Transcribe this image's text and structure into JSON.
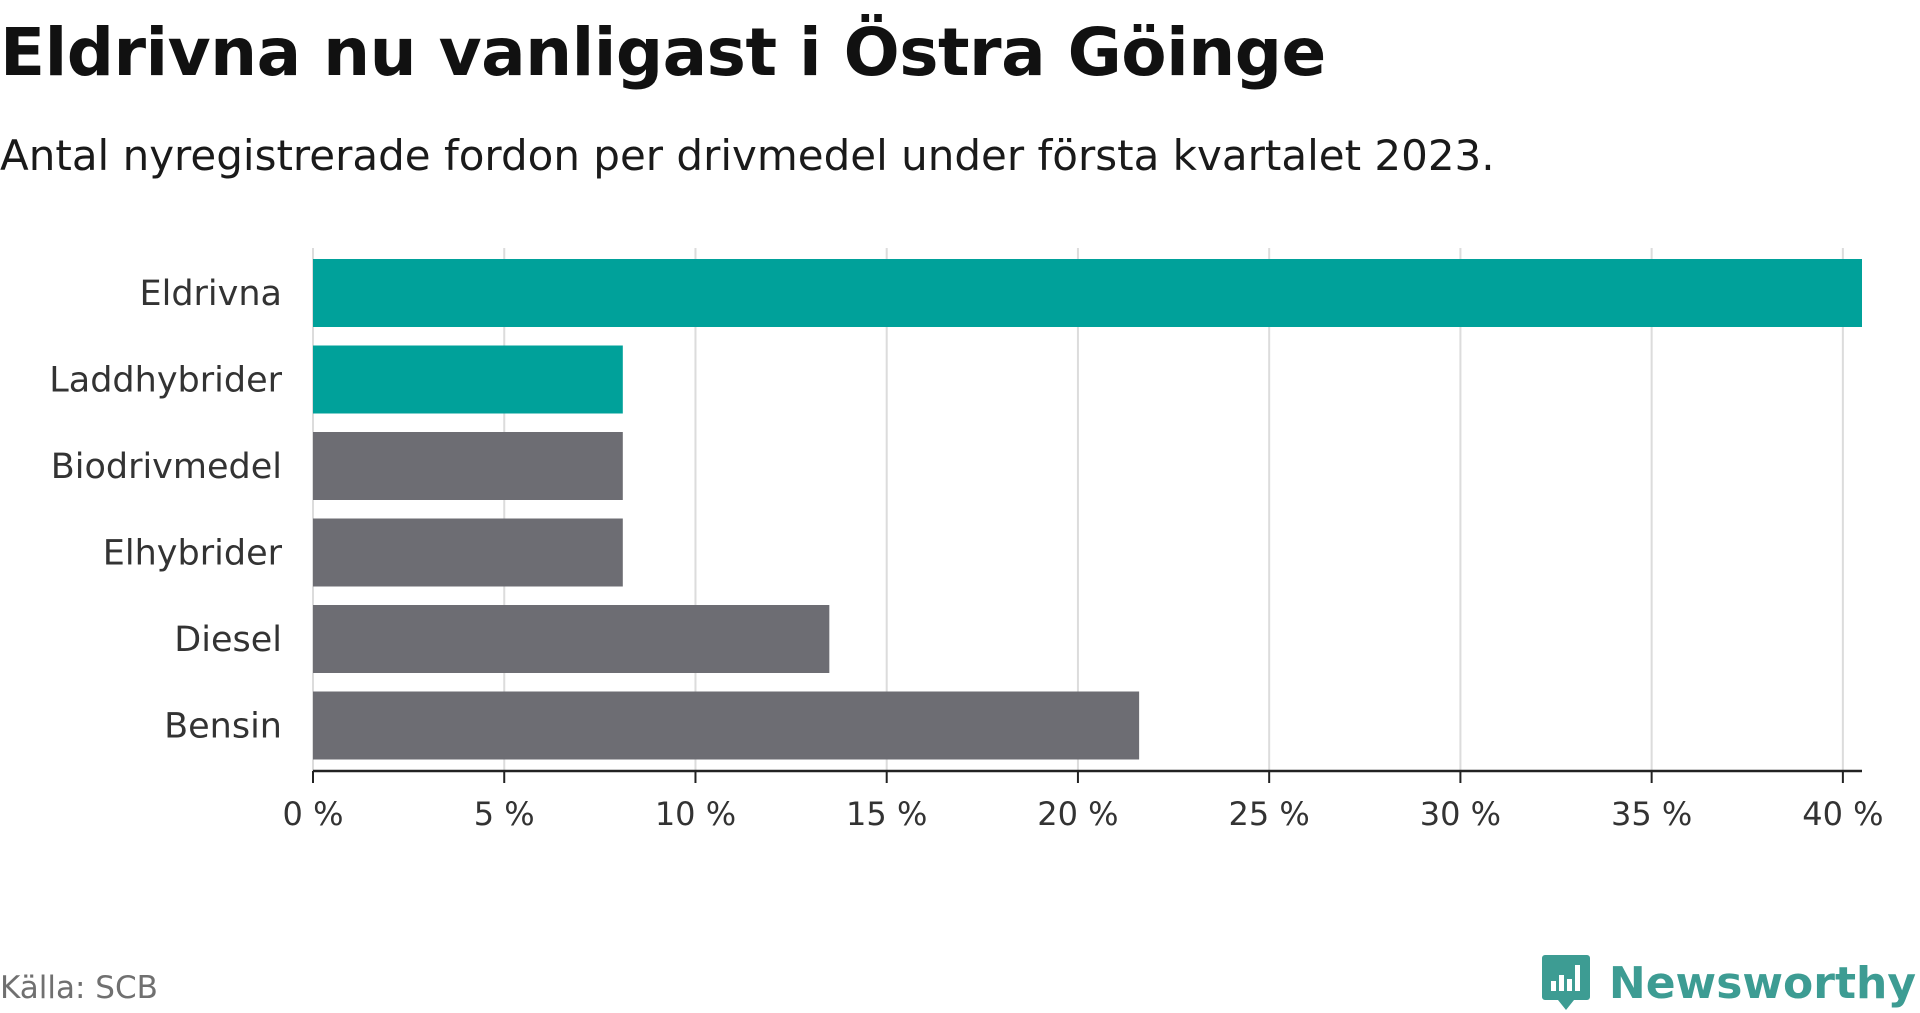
{
  "title": "Eldrivna nu vanligast i Östra Göinge",
  "subtitle": "Antal nyregistrerade fordon per drivmedel under första kvartalet 2023.",
  "source": "Källa: SCB",
  "brand": {
    "name": "Newsworthy",
    "icon": "newsworthy-logo-icon",
    "color": "#3d9c93"
  },
  "colors": {
    "highlight": "#00a19a",
    "default": "#6d6d73",
    "grid": "#dcdcdc",
    "axis": "#222222"
  },
  "chart_data": {
    "type": "bar",
    "orientation": "horizontal",
    "categories": [
      "Eldrivna",
      "Laddhybrider",
      "Biodrivmedel",
      "Elhybrider",
      "Diesel",
      "Bensin"
    ],
    "values": [
      40.5,
      8.1,
      8.1,
      8.1,
      13.5,
      21.6
    ],
    "highlighted": [
      true,
      true,
      false,
      false,
      false,
      false
    ],
    "xlim": [
      0,
      40.5
    ],
    "xticks": [
      0,
      5,
      10,
      15,
      20,
      25,
      30,
      35,
      40
    ],
    "xtick_labels": [
      "0 %",
      "5 %",
      "10 %",
      "15 %",
      "20 %",
      "25 %",
      "30 %",
      "35 %",
      "40 %"
    ],
    "grid": true,
    "title": "",
    "xlabel": "",
    "ylabel": ""
  }
}
